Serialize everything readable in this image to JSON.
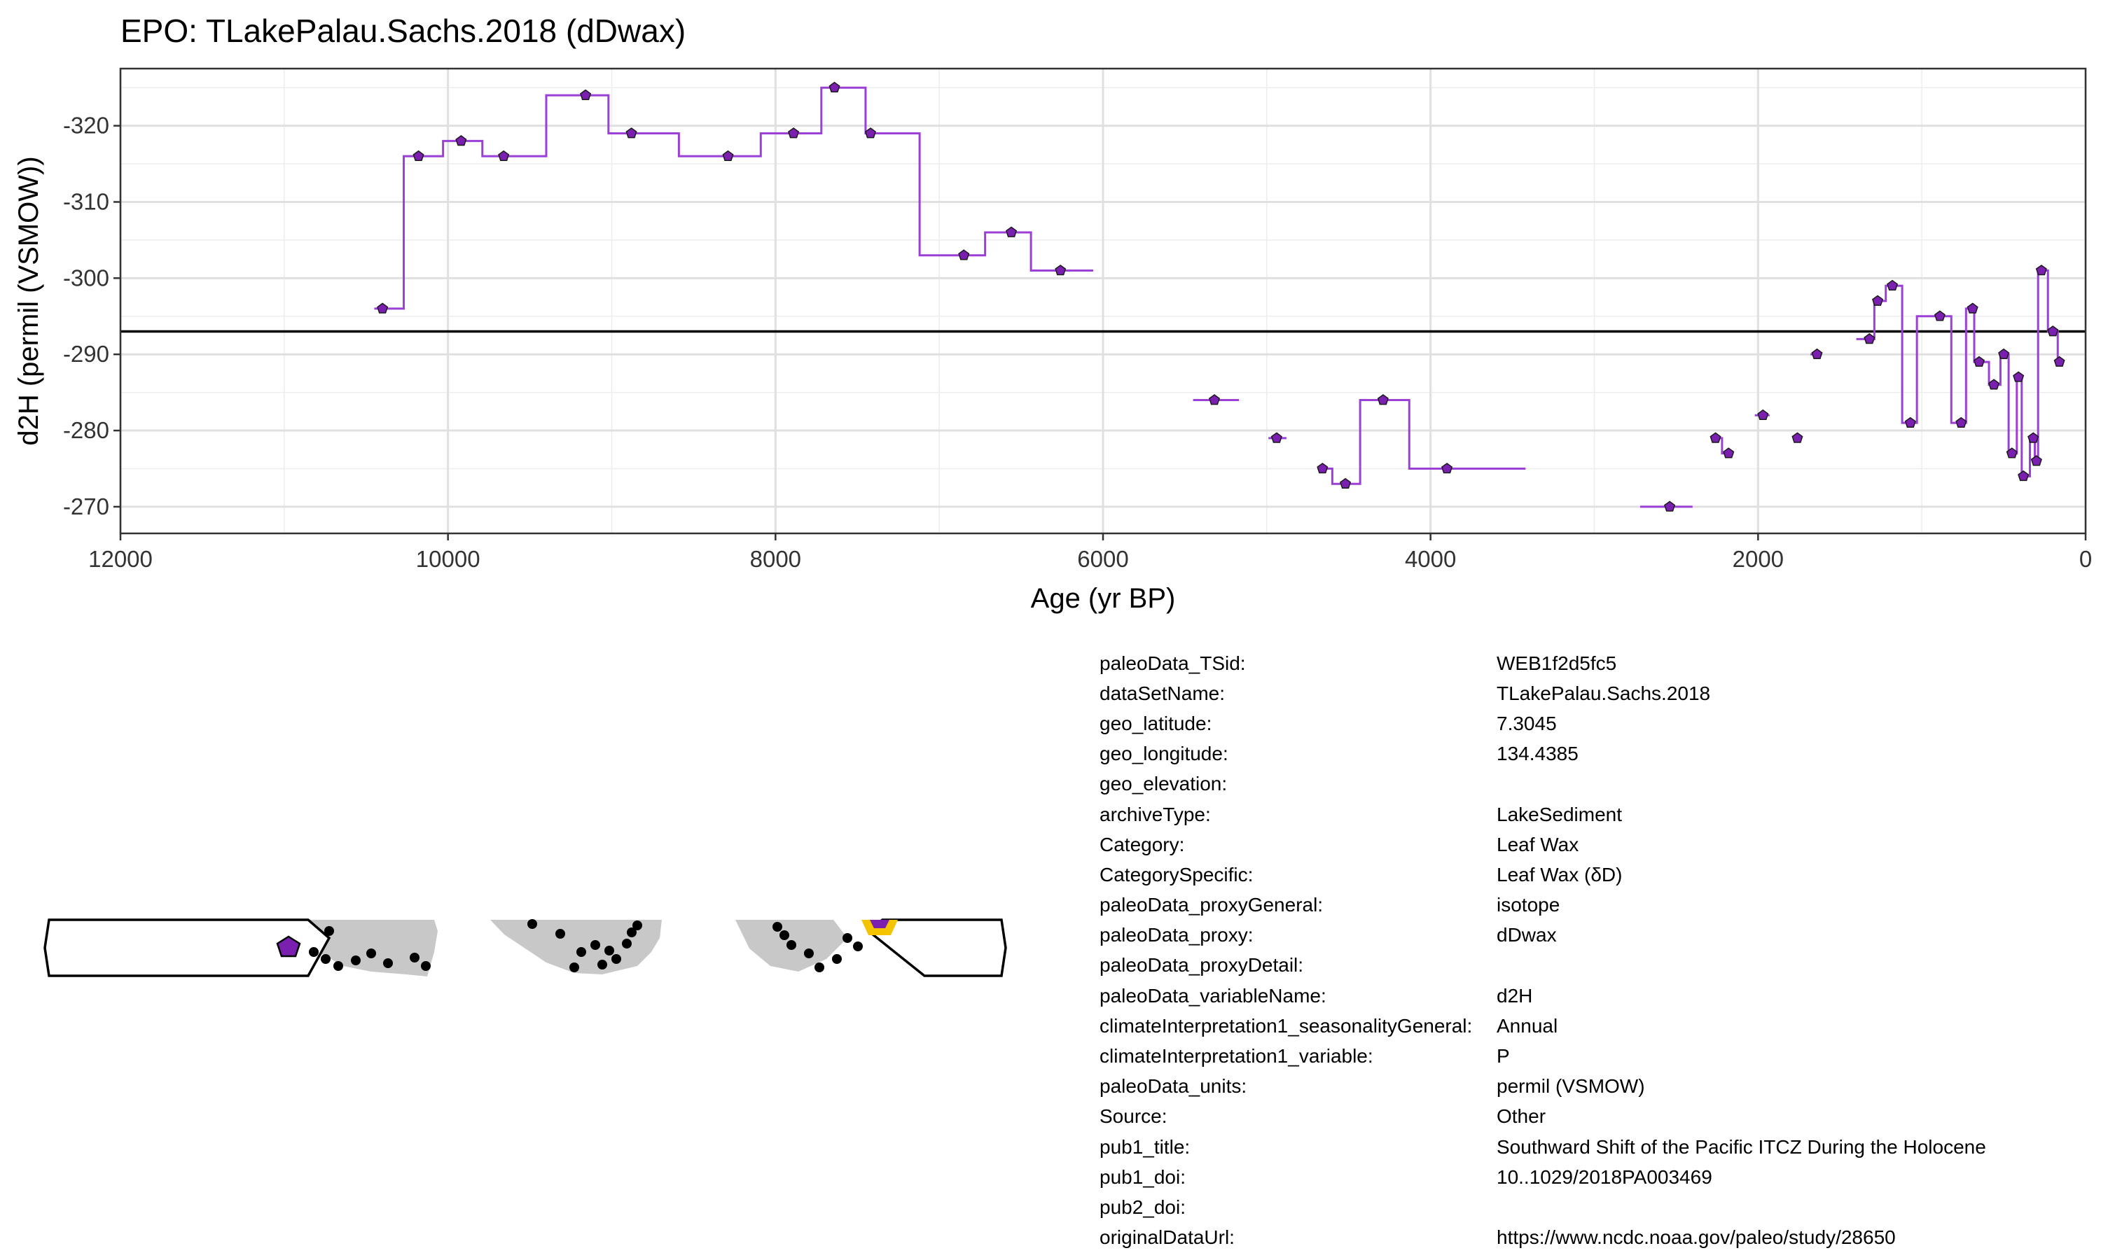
{
  "chart_data": {
    "type": "line",
    "title": "EPO: TLakePalau.Sachs.2018 (dDwax)",
    "xlabel": "Age (yr BP)",
    "ylabel": "d2H (permil (VSMOW))",
    "xlim": [
      12000,
      0
    ],
    "ylim": [
      -266.5,
      -327.5
    ],
    "x_reversed": true,
    "y_reversed": true,
    "x_ticks": [
      12000,
      10000,
      8000,
      6000,
      4000,
      2000,
      0
    ],
    "x_tick_labels": [
      "12000",
      "10000",
      "8000",
      "6000",
      "4000",
      "2000",
      "0"
    ],
    "y_ticks": [
      -320,
      -310,
      -300,
      -290,
      -280,
      -270
    ],
    "y_tick_labels": [
      "-320",
      "-310",
      "-300",
      "-290",
      "-280",
      "-270"
    ],
    "reference_line": -293,
    "grid": true,
    "legend": "none",
    "series": [
      {
        "color": "#9b3fd6",
        "marker_color": "#7b1fb0",
        "marker": "pentagon",
        "style": "step",
        "points": [
          {
            "x": 10400,
            "y": -296,
            "x0": 10450,
            "x1": 10270
          },
          {
            "x": 10180,
            "y": -316,
            "x0": 10270,
            "x1": 10030
          },
          {
            "x": 9920,
            "y": -318,
            "x0": 10030,
            "x1": 9790
          },
          {
            "x": 9660,
            "y": -316,
            "x0": 9790,
            "x1": 9400
          },
          {
            "x": 9160,
            "y": -324,
            "x0": 9400,
            "x1": 9020
          },
          {
            "x": 8880,
            "y": -319,
            "x0": 9020,
            "x1": 8590
          },
          {
            "x": 8290,
            "y": -316,
            "x0": 8590,
            "x1": 8090
          },
          {
            "x": 7890,
            "y": -319,
            "x0": 8090,
            "x1": 7720
          },
          {
            "x": 7640,
            "y": -325,
            "x0": 7720,
            "x1": 7450
          },
          {
            "x": 7420,
            "y": -319,
            "x0": 7450,
            "x1": 7120
          },
          {
            "x": 6850,
            "y": -303,
            "x0": 7120,
            "x1": 6720
          },
          {
            "x": 6560,
            "y": -306,
            "x0": 6720,
            "x1": 6440
          },
          {
            "x": 6260,
            "y": -301,
            "x0": 6440,
            "x1": 6060
          },
          {
            "x": 5320,
            "y": -284,
            "x0": 5450,
            "x1": 5170,
            "segment_start": true
          },
          {
            "x": 4940,
            "y": -279,
            "x0": 4990,
            "x1": 4880,
            "segment_start": true
          },
          {
            "x": 4660,
            "y": -275,
            "x0": 4690,
            "x1": 4600,
            "segment_start": true
          },
          {
            "x": 4520,
            "y": -273,
            "x0": 4600,
            "x1": 4430
          },
          {
            "x": 4290,
            "y": -284,
            "x0": 4430,
            "x1": 4130
          },
          {
            "x": 3900,
            "y": -275,
            "x0": 4130,
            "x1": 3420
          },
          {
            "x": 2540,
            "y": -270,
            "x0": 2720,
            "x1": 2400,
            "segment_start": true
          },
          {
            "x": 2260,
            "y": -279,
            "x0": 2290,
            "x1": 2220,
            "segment_start": true
          },
          {
            "x": 2180,
            "y": -277,
            "x0": 2220,
            "x1": 2150
          },
          {
            "x": 1970,
            "y": -282,
            "x0": 2020,
            "x1": 1930,
            "segment_start": true
          },
          {
            "x": 1760,
            "y": -279,
            "x0": 1760,
            "x1": 1760,
            "segment_start": true
          },
          {
            "x": 1640,
            "y": -290,
            "x0": 1680,
            "x1": 1610,
            "segment_start": true
          },
          {
            "x": 1320,
            "y": -292,
            "x0": 1400,
            "x1": 1290,
            "segment_start": true
          },
          {
            "x": 1270,
            "y": -297,
            "x0": 1290,
            "x1": 1220
          },
          {
            "x": 1180,
            "y": -299,
            "x0": 1220,
            "x1": 1120
          },
          {
            "x": 1070,
            "y": -281,
            "x0": 1120,
            "x1": 1030
          },
          {
            "x": 890,
            "y": -295,
            "x0": 1030,
            "x1": 820
          },
          {
            "x": 760,
            "y": -281,
            "x0": 820,
            "x1": 730
          },
          {
            "x": 690,
            "y": -296,
            "x0": 730,
            "x1": 680
          },
          {
            "x": 650,
            "y": -289,
            "x0": 680,
            "x1": 590
          },
          {
            "x": 560,
            "y": -286,
            "x0": 590,
            "x1": 520
          },
          {
            "x": 500,
            "y": -290,
            "x0": 520,
            "x1": 470
          },
          {
            "x": 450,
            "y": -277,
            "x0": 470,
            "x1": 420
          },
          {
            "x": 410,
            "y": -287,
            "x0": 420,
            "x1": 390
          },
          {
            "x": 380,
            "y": -274,
            "x0": 390,
            "x1": 340
          },
          {
            "x": 320,
            "y": -279,
            "x0": 340,
            "x1": 310
          },
          {
            "x": 300,
            "y": -276,
            "x0": 310,
            "x1": 290
          },
          {
            "x": 270,
            "y": -301,
            "x0": 290,
            "x1": 230
          },
          {
            "x": 200,
            "y": -293,
            "x0": 230,
            "x1": 170
          },
          {
            "x": 160,
            "y": -289,
            "x0": 170,
            "x1": 160
          }
        ]
      }
    ]
  },
  "map": {
    "site_color": "#7b1fb0",
    "highlight_color": "#f5c400",
    "other_sites_color": "#000000",
    "land_color": "#c8c8c8"
  },
  "metadata": [
    {
      "key": "paleoData_TSid:",
      "value": "WEB1f2d5fc5"
    },
    {
      "key": "dataSetName:",
      "value": "TLakePalau.Sachs.2018"
    },
    {
      "key": "geo_latitude:",
      "value": "7.3045"
    },
    {
      "key": "geo_longitude:",
      "value": "134.4385"
    },
    {
      "key": "geo_elevation:",
      "value": ""
    },
    {
      "key": "archiveType:",
      "value": "LakeSediment"
    },
    {
      "key": "Category:",
      "value": "Leaf Wax"
    },
    {
      "key": "CategorySpecific:",
      "value": "Leaf Wax (δD)"
    },
    {
      "key": "paleoData_proxyGeneral:",
      "value": "isotope"
    },
    {
      "key": "paleoData_proxy:",
      "value": "dDwax"
    },
    {
      "key": "paleoData_proxyDetail:",
      "value": ""
    },
    {
      "key": "paleoData_variableName:",
      "value": "d2H"
    },
    {
      "key": "climateInterpretation1_seasonalityGeneral:",
      "value": "Annual"
    },
    {
      "key": "climateInterpretation1_variable:",
      "value": "P"
    },
    {
      "key": "paleoData_units:",
      "value": "permil (VSMOW)"
    },
    {
      "key": "Source:",
      "value": "Other"
    },
    {
      "key": "pub1_title:",
      "value": "Southward Shift of the Pacific ITCZ During the Holocene"
    },
    {
      "key": "pub1_doi:",
      "value": "10..1029/2018PA003469"
    },
    {
      "key": "pub2_doi:",
      "value": ""
    },
    {
      "key": "originalDataUrl:",
      "value": "https://www.ncdc.noaa.gov/paleo/study/28650"
    }
  ]
}
